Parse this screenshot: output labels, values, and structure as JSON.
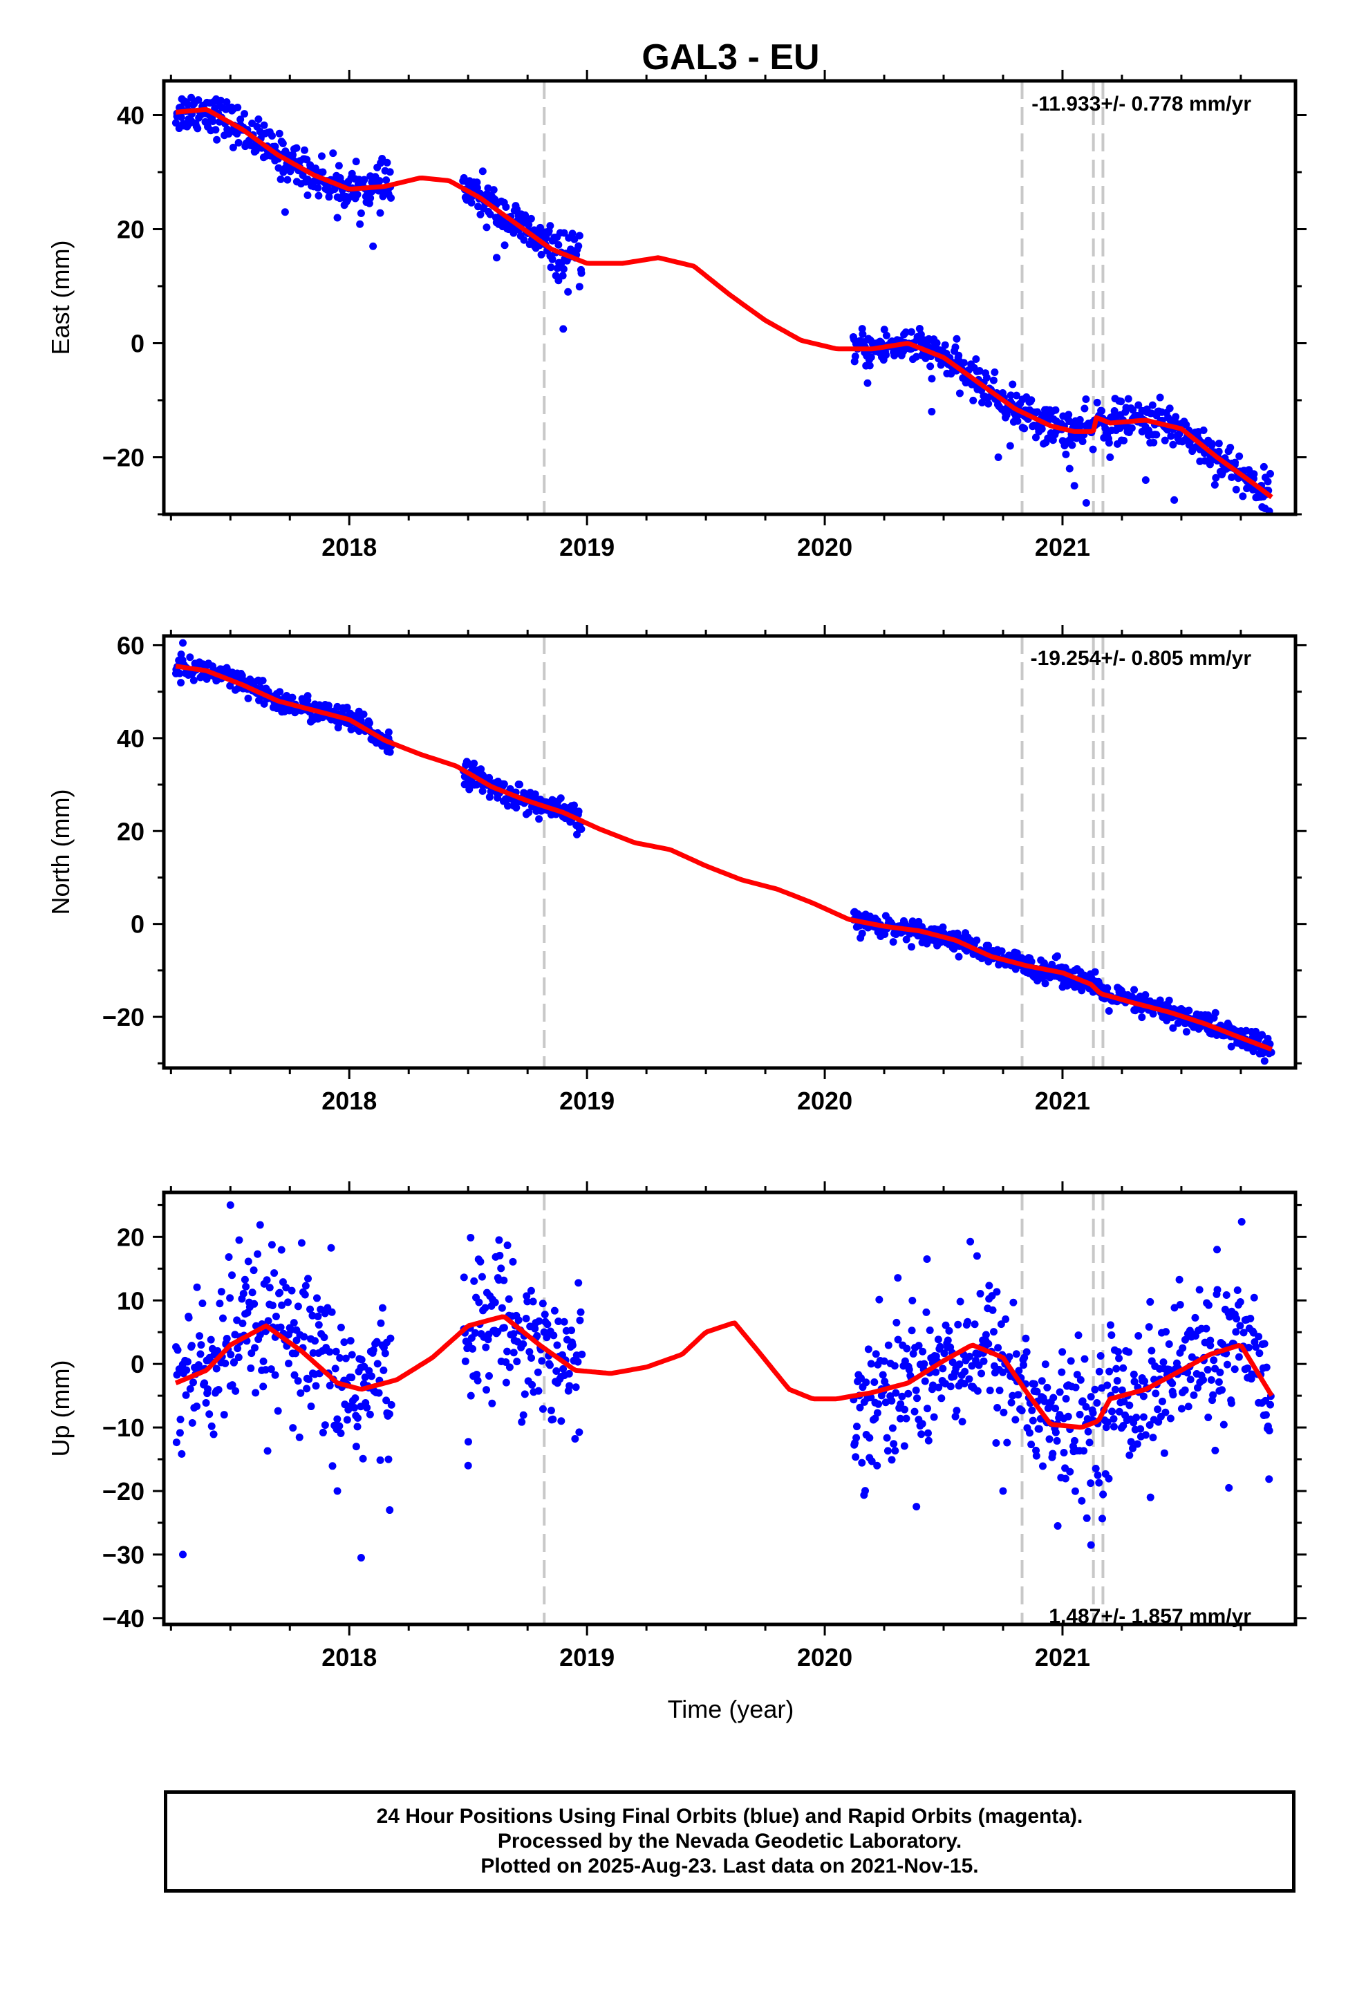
{
  "title": "GAL3 - EU",
  "colors": {
    "points": "#0000ff",
    "model": "#ff0000",
    "events": "#c8c8c8",
    "frame": "#000000"
  },
  "caption": {
    "line1": "24 Hour Positions Using Final Orbits (blue) and Rapid Orbits (magenta).",
    "line2": "Processed by the Nevada Geodetic Laboratory.",
    "line3": "Plotted on 2025-Aug-23. Last data on 2021-Nov-15."
  },
  "chart_data": [
    {
      "type": "scatter",
      "panel": "east",
      "ylabel": "East (mm)",
      "xlabel": "",
      "xlim": [
        2017.22,
        2021.98
      ],
      "ylim": [
        -30,
        46
      ],
      "xticks": [
        2018,
        2019,
        2020,
        2021
      ],
      "yticks": [
        -20,
        0,
        20,
        40
      ],
      "rate_text": "-11.933+/- 0.778 mm/yr",
      "event_lines": [
        2018.82,
        2020.83,
        2021.13,
        2021.17
      ],
      "model_curve": {
        "x": [
          2017.27,
          2017.4,
          2017.55,
          2017.7,
          2017.85,
          2018.0,
          2018.15,
          2018.3,
          2018.42,
          2018.55,
          2018.7,
          2018.85,
          2019.0,
          2019.15,
          2019.3,
          2019.45,
          2019.6,
          2019.75,
          2019.9,
          2020.05,
          2020.2,
          2020.35,
          2020.5,
          2020.65,
          2020.8,
          2020.95,
          2021.05,
          2021.13,
          2021.14,
          2021.2,
          2021.35,
          2021.5,
          2021.65,
          2021.8,
          2021.88
        ],
        "y": [
          40.5,
          41.0,
          37.5,
          33.0,
          29.5,
          27.0,
          27.5,
          29.0,
          28.5,
          25.5,
          21.0,
          16.5,
          14.0,
          14.0,
          15.0,
          13.5,
          8.5,
          4.0,
          0.5,
          -1.0,
          -1.0,
          0.0,
          -2.5,
          -7.0,
          -11.5,
          -14.5,
          -15.5,
          -15.5,
          -13.0,
          -14.0,
          -13.5,
          -15.0,
          -20.0,
          -24.5,
          -27.0
        ]
      },
      "segments": [
        {
          "x0": 2017.27,
          "x1": 2018.18,
          "scatter": 1.8
        },
        {
          "x0": 2018.48,
          "x1": 2018.98,
          "scatter": 1.8
        },
        {
          "x0": 2020.12,
          "x1": 2020.83,
          "scatter": 1.6
        },
        {
          "x0": 2020.83,
          "x1": 2021.88,
          "scatter": 1.8
        }
      ],
      "outliers": [
        {
          "x": 2017.73,
          "y": 23
        },
        {
          "x": 2017.95,
          "y": 22
        },
        {
          "x": 2018.1,
          "y": 17
        },
        {
          "x": 2018.62,
          "y": 15
        },
        {
          "x": 2018.78,
          "y": 17
        },
        {
          "x": 2018.88,
          "y": 11
        },
        {
          "x": 2018.92,
          "y": 9
        },
        {
          "x": 2018.9,
          "y": 2.5
        },
        {
          "x": 2020.18,
          "y": -7
        },
        {
          "x": 2020.45,
          "y": -12
        },
        {
          "x": 2020.73,
          "y": -20
        },
        {
          "x": 2020.78,
          "y": -18
        },
        {
          "x": 2021.05,
          "y": -25
        },
        {
          "x": 2021.1,
          "y": -28
        },
        {
          "x": 2021.35,
          "y": -24
        },
        {
          "x": 2021.47,
          "y": -27.5
        },
        {
          "x": 2021.03,
          "y": -22
        },
        {
          "x": 2021.2,
          "y": -20
        }
      ]
    },
    {
      "type": "scatter",
      "panel": "north",
      "ylabel": "North (mm)",
      "xlabel": "",
      "xlim": [
        2017.22,
        2021.98
      ],
      "ylim": [
        -31,
        62
      ],
      "xticks": [
        2018,
        2019,
        2020,
        2021
      ],
      "yticks": [
        -20,
        0,
        20,
        40,
        60
      ],
      "rate_text": "-19.254+/- 0.805 mm/yr",
      "event_lines": [
        2018.82,
        2020.83,
        2021.13,
        2021.17
      ],
      "model_curve": {
        "x": [
          2017.27,
          2017.4,
          2017.55,
          2017.7,
          2017.85,
          2018.0,
          2018.15,
          2018.3,
          2018.45,
          2018.6,
          2018.75,
          2018.9,
          2019.05,
          2019.2,
          2019.35,
          2019.5,
          2019.65,
          2019.8,
          2019.95,
          2020.1,
          2020.25,
          2020.4,
          2020.55,
          2020.7,
          2020.85,
          2021.0,
          2021.12,
          2021.16,
          2021.3,
          2021.45,
          2021.6,
          2021.75,
          2021.88
        ],
        "y": [
          55.5,
          54.5,
          51.5,
          48.0,
          46.0,
          44.0,
          39.5,
          36.5,
          34.0,
          29.5,
          26.5,
          24.0,
          20.5,
          17.5,
          16.0,
          12.5,
          9.5,
          7.5,
          4.5,
          1.0,
          -0.5,
          -1.5,
          -3.5,
          -7.0,
          -9.0,
          -10.5,
          -13.0,
          -15.0,
          -17.0,
          -19.0,
          -21.5,
          -24.5,
          -27.0
        ]
      },
      "segments": [
        {
          "x0": 2017.27,
          "x1": 2018.18,
          "scatter": 1.3
        },
        {
          "x0": 2018.48,
          "x1": 2018.98,
          "scatter": 1.3
        },
        {
          "x0": 2020.12,
          "x1": 2020.83,
          "scatter": 1.1
        },
        {
          "x0": 2020.83,
          "x1": 2021.88,
          "scatter": 1.3
        }
      ],
      "outliers": [
        {
          "x": 2017.3,
          "y": 60.5
        },
        {
          "x": 2018.5,
          "y": 30
        },
        {
          "x": 2020.15,
          "y": -3
        },
        {
          "x": 2021.85,
          "y": -29.5
        }
      ]
    },
    {
      "type": "scatter",
      "panel": "up",
      "ylabel": "Up (mm)",
      "xlabel": "Time (year)",
      "xlim": [
        2017.22,
        2021.98
      ],
      "ylim": [
        -41,
        27
      ],
      "xticks": [
        2018,
        2019,
        2020,
        2021
      ],
      "yticks": [
        -40,
        -30,
        -20,
        -10,
        0,
        10,
        20
      ],
      "rate_text": "1.487+/- 1.857 mm/yr",
      "event_lines": [
        2018.82,
        2020.83,
        2021.13,
        2021.17
      ],
      "model_curve": {
        "x": [
          2017.27,
          2017.4,
          2017.5,
          2017.65,
          2017.8,
          2017.95,
          2018.05,
          2018.2,
          2018.35,
          2018.5,
          2018.65,
          2018.8,
          2018.95,
          2019.1,
          2019.25,
          2019.4,
          2019.5,
          2019.62,
          2019.72,
          2019.85,
          2019.95,
          2020.05,
          2020.2,
          2020.35,
          2020.5,
          2020.62,
          2020.75,
          2020.85,
          2020.95,
          2021.08,
          2021.15,
          2021.2,
          2021.35,
          2021.5,
          2021.62,
          2021.75,
          2021.88
        ],
        "y": [
          -3,
          -1,
          3,
          6,
          2,
          -3,
          -4,
          -2.5,
          1,
          6,
          7.5,
          3,
          -1,
          -1.5,
          -0.5,
          1.5,
          5,
          6.5,
          2,
          -4,
          -5.5,
          -5.5,
          -4.5,
          -3,
          0.5,
          3,
          1,
          -4.5,
          -9.5,
          -10,
          -9,
          -5.5,
          -4,
          -1,
          1.5,
          3,
          -5
        ]
      },
      "segments": [
        {
          "x0": 2017.27,
          "x1": 2018.18,
          "scatter": 6.5
        },
        {
          "x0": 2018.48,
          "x1": 2018.98,
          "scatter": 5.5
        },
        {
          "x0": 2020.12,
          "x1": 2020.83,
          "scatter": 6.0
        },
        {
          "x0": 2020.83,
          "x1": 2021.88,
          "scatter": 5.5
        }
      ],
      "outliers": [
        {
          "x": 2017.3,
          "y": -30
        },
        {
          "x": 2017.5,
          "y": 25
        },
        {
          "x": 2018.05,
          "y": -30.5
        },
        {
          "x": 2018.17,
          "y": -23
        },
        {
          "x": 2018.5,
          "y": -16
        },
        {
          "x": 2018.63,
          "y": 19.5
        },
        {
          "x": 2020.43,
          "y": 16.5
        },
        {
          "x": 2020.75,
          "y": -20
        },
        {
          "x": 2020.98,
          "y": -25.5
        },
        {
          "x": 2021.12,
          "y": -28.5
        },
        {
          "x": 2021.37,
          "y": -21
        },
        {
          "x": 2021.65,
          "y": 18
        },
        {
          "x": 2021.7,
          "y": -19.5
        },
        {
          "x": 2021.87,
          "y": -10.5
        },
        {
          "x": 2017.95,
          "y": -20
        },
        {
          "x": 2020.22,
          "y": -16
        }
      ]
    }
  ]
}
